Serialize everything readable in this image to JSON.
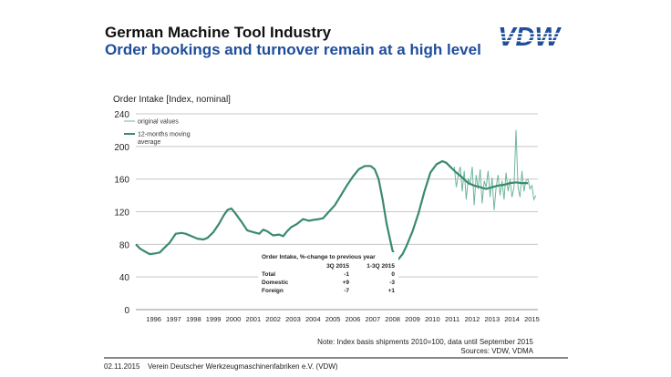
{
  "header": {
    "title": "German Machine Tool Industry",
    "subtitle": "Order bookings and turnover remain at a high level",
    "logo_text": "VDW"
  },
  "colors": {
    "brand_blue": "#1f4e9a",
    "series_original": "#6fb59c",
    "series_average": "#3a8a6c",
    "grid": "#c8c8c8"
  },
  "chart_data": {
    "type": "line",
    "title": "Order Intake  [Index, nominal]",
    "xlabel": "",
    "ylabel": "Order Intake  [Index, nominal]",
    "ylim": [
      0,
      240
    ],
    "yticks": [
      0,
      40,
      80,
      120,
      160,
      200,
      240
    ],
    "xlim": [
      1995.6,
      2015.8
    ],
    "xtick_labels": [
      "1996",
      "1997",
      "1998",
      "1999",
      "2000",
      "2001",
      "2002",
      "2003",
      "2004",
      "2005",
      "2006",
      "2007",
      "2008",
      "2009",
      "2010",
      "2011",
      "2012",
      "2013",
      "2014",
      "2015"
    ],
    "grid": true,
    "legend_position": "top-left",
    "series": [
      {
        "name": "original values",
        "x": [
          2011.6,
          2011.7,
          2011.8,
          2011.9,
          2012.0,
          2012.1,
          2012.2,
          2012.3,
          2012.4,
          2012.5,
          2012.6,
          2012.7,
          2012.8,
          2012.9,
          2013.0,
          2013.1,
          2013.2,
          2013.3,
          2013.4,
          2013.5,
          2013.6,
          2013.7,
          2013.8,
          2013.9,
          2014.0,
          2014.1,
          2014.2,
          2014.3,
          2014.4,
          2014.5,
          2014.6,
          2014.7,
          2014.8,
          2014.9,
          2015.0,
          2015.1,
          2015.2,
          2015.3,
          2015.4,
          2015.5,
          2015.6,
          2015.7
        ],
        "y": [
          175,
          150,
          165,
          175,
          145,
          170,
          135,
          160,
          155,
          175,
          128,
          165,
          148,
          172,
          130,
          158,
          150,
          170,
          138,
          162,
          122,
          150,
          165,
          140,
          158,
          135,
          168,
          145,
          160,
          138,
          150,
          220,
          150,
          138,
          170,
          145,
          158,
          160,
          148,
          152,
          135,
          140
        ]
      },
      {
        "name": "12-months moving average",
        "x": [
          1995.6,
          1995.8,
          1996.0,
          1996.3,
          1996.6,
          1996.8,
          1997.0,
          1997.3,
          1997.6,
          1997.9,
          1998.1,
          1998.4,
          1998.7,
          1999.0,
          1999.2,
          1999.5,
          1999.8,
          2000.0,
          2000.2,
          2000.4,
          2000.6,
          2000.9,
          2001.2,
          2001.5,
          2001.8,
          2002.0,
          2002.2,
          2002.5,
          2002.8,
          2003.0,
          2003.2,
          2003.4,
          2003.7,
          2004.0,
          2004.3,
          2004.5,
          2004.8,
          2005.0,
          2005.3,
          2005.6,
          2005.9,
          2006.2,
          2006.5,
          2006.8,
          2007.1,
          2007.4,
          2007.6,
          2007.8,
          2008.0,
          2008.2,
          2008.5,
          2008.8,
          2009.0,
          2009.2,
          2009.5,
          2009.8,
          2010.1,
          2010.4,
          2010.7,
          2011.0,
          2011.2,
          2011.4,
          2011.7,
          2012.0,
          2012.3,
          2012.6,
          2012.9,
          2013.2,
          2013.5,
          2013.8,
          2014.1,
          2014.4,
          2014.7,
          2015.0,
          2015.3
        ],
        "y": [
          80,
          75,
          72,
          68,
          69,
          70,
          75,
          82,
          93,
          94,
          93,
          90,
          87,
          86,
          88,
          95,
          106,
          115,
          122,
          124,
          118,
          108,
          97,
          95,
          93,
          98,
          96,
          91,
          92,
          90,
          96,
          101,
          105,
          111,
          109,
          110,
          111,
          112,
          120,
          128,
          140,
          152,
          163,
          172,
          176,
          176,
          172,
          160,
          135,
          105,
          72,
          62,
          68,
          78,
          96,
          118,
          145,
          168,
          178,
          182,
          180,
          175,
          168,
          162,
          155,
          152,
          150,
          148,
          150,
          152,
          153,
          155,
          156,
          155,
          155
        ]
      }
    ],
    "inset_table": {
      "title": "Order Intake, %-change to previous year",
      "columns": [
        "",
        "3Q 2015",
        "1-3Q 2015"
      ],
      "rows": [
        [
          "Total",
          "-1",
          "0"
        ],
        [
          "Domestic",
          "+9",
          "-3"
        ],
        [
          "Foreign",
          "-7",
          "+1"
        ]
      ]
    }
  },
  "notes": {
    "line1": "Note: Index basis shipments 2010=100, data until September 2015",
    "line2": "Sources: VDW, VDMA"
  },
  "footer": {
    "date": "02.11.2015",
    "organization": "Verein Deutscher Werkzeugmaschinenfabriken e.V. (VDW)"
  }
}
